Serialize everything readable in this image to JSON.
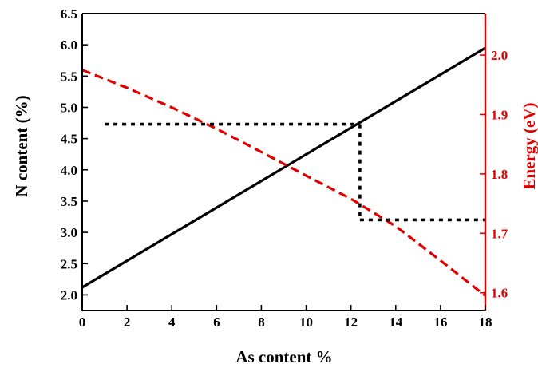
{
  "chart_data": {
    "type": "line",
    "xlabel": "As content %",
    "ylabel_left": "N content (%)",
    "ylabel_right": "Energy (eV)",
    "xlim": [
      0,
      18
    ],
    "ylim_left": [
      1.75,
      6.5
    ],
    "ylim_right": [
      1.57,
      2.07
    ],
    "x_ticks": [
      0,
      2,
      4,
      6,
      8,
      10,
      12,
      14,
      16,
      18
    ],
    "y_left_ticks": [
      2.0,
      2.5,
      3.0,
      3.5,
      4.0,
      4.5,
      5.0,
      5.5,
      6.0,
      6.5
    ],
    "y_right_ticks": [
      1.6,
      1.7,
      1.8,
      1.9,
      2.0
    ],
    "grid": false,
    "colors": {
      "left_axis": "#000000",
      "right_axis": "#e00000"
    },
    "series": [
      {
        "axis": "left",
        "style": "solid",
        "color": "#000000",
        "x": [
          0,
          18
        ],
        "y": [
          2.12,
          5.95
        ]
      },
      {
        "axis": "right",
        "style": "dashed",
        "color": "#e00000",
        "x": [
          0,
          2,
          4,
          6,
          8,
          10,
          12,
          14,
          16,
          18
        ],
        "y": [
          1.975,
          1.945,
          1.912,
          1.876,
          1.837,
          1.797,
          1.758,
          1.712,
          1.654,
          1.595
        ]
      },
      {
        "axis": "left",
        "style": "dotted",
        "color": "#000000",
        "x": [
          1,
          12.4
        ],
        "y": [
          4.73,
          4.73
        ]
      },
      {
        "axis": "left",
        "style": "dotted",
        "color": "#000000",
        "x": [
          12.4,
          12.4
        ],
        "y": [
          4.73,
          3.2
        ]
      },
      {
        "axis": "left",
        "style": "dotted",
        "color": "#000000",
        "x": [
          12.4,
          18
        ],
        "y": [
          3.2,
          3.2
        ]
      }
    ]
  }
}
